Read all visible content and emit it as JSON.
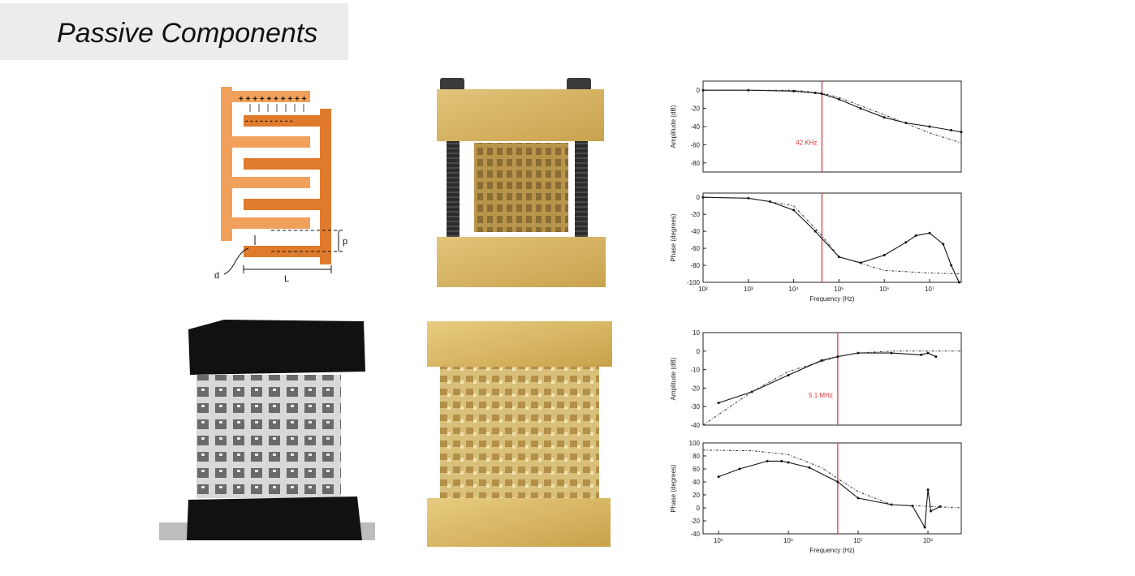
{
  "slide": {
    "title": "Passive Components"
  },
  "diagram": {
    "charge_plus": "+ + + + + + + + + +",
    "charge_minus": "- - - - - - - - - -",
    "label_p": "p",
    "label_d": "d",
    "label_L": "L",
    "colors": {
      "light_orange": "#f0a05a",
      "dark_orange": "#e07a2c"
    }
  },
  "chart_data": [
    {
      "type": "line",
      "x_scale": "log",
      "xlim": [
        100,
        50000000
      ],
      "ylim": [
        -90,
        10
      ],
      "ylabel": "Amplitude (dB)",
      "xlabel": "",
      "yticks": [
        0,
        -20,
        -40,
        -60,
        -80
      ],
      "marker": {
        "x": 42000,
        "label": "42 KHz",
        "color": "#e53030"
      },
      "series": [
        {
          "style": "measured",
          "x": [
            100,
            1000,
            10000,
            30000,
            42000,
            100000,
            300000,
            1000000,
            3000000,
            10000000,
            30000000,
            50000000
          ],
          "y": [
            0,
            0,
            -1,
            -3,
            -4,
            -10,
            -20,
            -30,
            -36,
            -40,
            -44,
            -46
          ]
        },
        {
          "style": "model",
          "x": [
            100,
            1000,
            10000,
            42000,
            100000,
            1000000,
            10000000,
            50000000
          ],
          "y": [
            0,
            0,
            0,
            -3,
            -8,
            -27,
            -47,
            -58
          ]
        }
      ]
    },
    {
      "type": "line",
      "x_scale": "log",
      "xlim": [
        100,
        50000000
      ],
      "ylim": [
        -100,
        5
      ],
      "ylabel": "Phase (degrees)",
      "xlabel": "Frequency (Hz)",
      "yticks": [
        0,
        -20,
        -40,
        -60,
        -80,
        -100
      ],
      "xticks": [
        "10²",
        "10³",
        "10⁴",
        "10⁵",
        "10⁶",
        "10⁷"
      ],
      "marker": {
        "x": 42000,
        "color": "#e53030"
      },
      "series": [
        {
          "style": "measured",
          "x": [
            100,
            1000,
            3000,
            10000,
            30000,
            100000,
            300000,
            1000000,
            3000000,
            5000000,
            10000000,
            20000000,
            30000000,
            45000000
          ],
          "y": [
            0,
            -1,
            -5,
            -15,
            -40,
            -70,
            -77,
            -68,
            -53,
            -45,
            -42,
            -55,
            -80,
            -100
          ]
        },
        {
          "style": "model",
          "x": [
            100,
            1000,
            10000,
            42000,
            100000,
            1000000,
            10000000,
            45000000
          ],
          "y": [
            0,
            -1,
            -10,
            -45,
            -70,
            -86,
            -89,
            -90
          ]
        }
      ]
    },
    {
      "type": "line",
      "x_scale": "log",
      "xlim": [
        60000,
        300000000
      ],
      "ylim": [
        -40,
        10
      ],
      "ylabel": "Amplitude (dB)",
      "xlabel": "",
      "yticks": [
        10,
        0,
        -10,
        -20,
        -30,
        -40
      ],
      "marker": {
        "x": 5100000,
        "label": "5.1 MHz",
        "color": "#e53030"
      },
      "series": [
        {
          "style": "measured",
          "x": [
            100000,
            300000,
            1000000,
            3000000,
            5100000,
            10000000,
            30000000,
            80000000,
            100000000,
            130000000
          ],
          "y": [
            -28,
            -22,
            -13,
            -5,
            -3,
            -1,
            -1,
            -2,
            -1,
            -3
          ]
        },
        {
          "style": "model",
          "x": [
            60000,
            300000,
            1000000,
            5100000,
            10000000,
            30000000,
            300000000
          ],
          "y": [
            -40,
            -22,
            -11,
            -3,
            -1,
            0,
            0
          ]
        }
      ]
    },
    {
      "type": "line",
      "x_scale": "log",
      "xlim": [
        60000,
        300000000
      ],
      "ylim": [
        -40,
        100
      ],
      "ylabel": "Phase (degrees)",
      "xlabel": "Frequency (Hz)",
      "yticks": [
        100,
        80,
        60,
        40,
        20,
        0,
        -20,
        -40
      ],
      "xticks": [
        "10⁵",
        "10⁶",
        "10⁷",
        "10⁸"
      ],
      "marker": {
        "x": 5100000,
        "color": "#e53030"
      },
      "series": [
        {
          "style": "measured",
          "x": [
            100000,
            200000,
            500000,
            800000,
            1000000,
            2000000,
            5100000,
            10000000,
            30000000,
            60000000,
            90000000,
            100000000,
            110000000,
            150000000
          ],
          "y": [
            48,
            60,
            72,
            72,
            70,
            62,
            40,
            15,
            5,
            3,
            -30,
            28,
            -5,
            2
          ]
        },
        {
          "style": "model",
          "x": [
            60000,
            300000,
            1000000,
            3000000,
            5100000,
            10000000,
            30000000,
            300000000
          ],
          "y": [
            89,
            88,
            82,
            62,
            45,
            25,
            5,
            0
          ]
        }
      ]
    }
  ]
}
